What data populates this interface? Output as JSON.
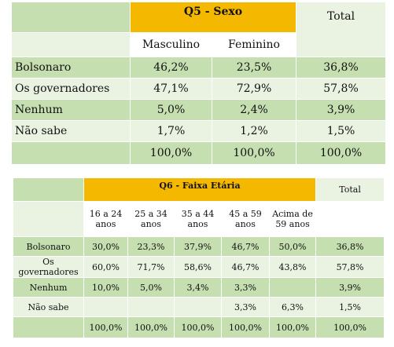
{
  "table_q5": {
    "title": "Q5 - Sexo",
    "total_header": "Total",
    "columns": [
      "Masculino",
      "Feminino"
    ],
    "rows": [
      {
        "label": "Bolsonaro",
        "values": [
          "46,2%",
          "23,5%",
          "36,8%"
        ]
      },
      {
        "label": "Os governadores",
        "values": [
          "47,1%",
          "72,9%",
          "57,8%"
        ]
      },
      {
        "label": "Nenhum",
        "values": [
          "5,0%",
          "2,4%",
          "3,9%"
        ]
      },
      {
        "label": "Não sabe",
        "values": [
          "1,7%",
          "1,2%",
          "1,5%"
        ]
      }
    ],
    "totals": [
      "100,0%",
      "100,0%",
      "100,0%"
    ]
  },
  "table_q6": {
    "title": "Q6 - Faixa Etária",
    "total_header": "Total",
    "columns": [
      {
        "line1": "16 a 24",
        "line2": "anos"
      },
      {
        "line1": "25 a 34",
        "line2": "anos"
      },
      {
        "line1": "35 a 44",
        "line2": "anos"
      },
      {
        "line1": "45 a 59",
        "line2": "anos"
      },
      {
        "line1": "Acima de",
        "line2": "59 anos"
      }
    ],
    "rows": [
      {
        "label": "Bolsonaro",
        "values": [
          "30,0%",
          "23,3%",
          "37,9%",
          "46,7%",
          "50,0%",
          "36,8%"
        ]
      },
      {
        "label": "Os governadores",
        "values": [
          "60,0%",
          "71,7%",
          "58,6%",
          "46,7%",
          "43,8%",
          "57,8%"
        ]
      },
      {
        "label": "Nenhum",
        "values": [
          "10,0%",
          "5,0%",
          "3,4%",
          "3,3%",
          "",
          "3,9%"
        ]
      },
      {
        "label": "Não sabe",
        "values": [
          "",
          "",
          "",
          "3,3%",
          "6,3%",
          "1,5%"
        ]
      }
    ],
    "totals": [
      "100,0%",
      "100,0%",
      "100,0%",
      "100,0%",
      "100,0%",
      "100,0%"
    ]
  },
  "colors": {
    "header_orange": "#f5b800",
    "green": "#c6dfb0",
    "light_green": "#eaf2e2",
    "mid_green": "#d7e8c9"
  }
}
